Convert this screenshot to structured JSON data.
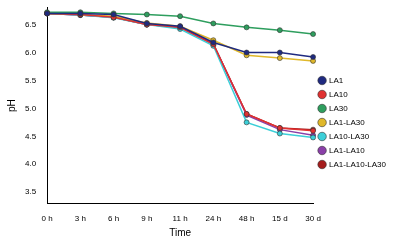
{
  "chart_data": {
    "type": "line",
    "x_label": "Time",
    "y_label": "pH",
    "categories": [
      "0 h",
      "3 h",
      "6 h",
      "9 h",
      "11 h",
      "24 h",
      "48 h",
      "15 d",
      "30 d"
    ],
    "ylim": [
      3.3,
      6.8
    ],
    "yticks": [
      3.5,
      4.0,
      4.5,
      5.0,
      5.5,
      6.0,
      6.5
    ],
    "grid": false,
    "legend": "right",
    "series": [
      {
        "name": "LA1",
        "color": "#1f2a80",
        "marker": "circle",
        "values": [
          6.7,
          6.7,
          6.68,
          6.52,
          6.47,
          6.18,
          6.0,
          6.0,
          5.92
        ]
      },
      {
        "name": "LA10",
        "color": "#e03131",
        "marker": "circle",
        "values": [
          6.7,
          6.68,
          6.63,
          6.5,
          6.45,
          6.15,
          4.9,
          4.65,
          4.6
        ]
      },
      {
        "name": "LA30",
        "color": "#2e9e5e",
        "marker": "circle",
        "values": [
          6.72,
          6.72,
          6.7,
          6.68,
          6.65,
          6.52,
          6.45,
          6.4,
          6.33
        ]
      },
      {
        "name": "LA1-LA30",
        "color": "#e0b82a",
        "marker": "circle",
        "values": [
          6.7,
          6.68,
          6.65,
          6.53,
          6.47,
          6.22,
          5.95,
          5.9,
          5.85
        ]
      },
      {
        "name": "LA10-LA30",
        "color": "#3ccfd8",
        "marker": "circle",
        "values": [
          6.7,
          6.67,
          6.62,
          6.5,
          6.42,
          6.12,
          4.75,
          4.55,
          4.48
        ]
      },
      {
        "name": "LA1-LA10",
        "color": "#8a3fa8",
        "marker": "circle",
        "values": [
          6.7,
          6.67,
          6.63,
          6.5,
          6.45,
          6.15,
          4.88,
          4.62,
          4.52
        ]
      },
      {
        "name": "LA1-LA10-LA30",
        "color": "#a51d1d",
        "marker": "circle",
        "values": [
          6.7,
          6.67,
          6.63,
          6.5,
          6.45,
          6.15,
          4.9,
          4.65,
          4.62
        ]
      }
    ]
  }
}
